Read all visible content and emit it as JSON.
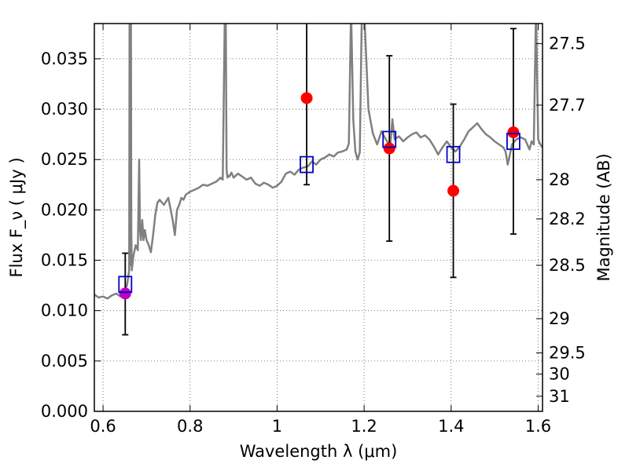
{
  "chart_data": {
    "type": "scatter",
    "title": "",
    "xlabel": "Wavelength  λ (μm)",
    "ylabel": "Flux  F_ν  ( μJy )",
    "ylabel_right": "Magnitude (AB)",
    "xlim": [
      0.58,
      1.61
    ],
    "ylim": [
      0.0,
      0.0385
    ],
    "grid": true,
    "x_ticks": [
      0.6,
      0.8,
      1.0,
      1.2,
      1.4,
      1.6
    ],
    "x_tick_labels": [
      "0.6",
      "0.8",
      "1",
      "1.2",
      "1.4",
      "1.6"
    ],
    "y_ticks": [
      0.0,
      0.005,
      0.01,
      0.015,
      0.02,
      0.025,
      0.03,
      0.035
    ],
    "y_tick_labels": [
      "0.000",
      "0.005",
      "0.010",
      "0.015",
      "0.020",
      "0.025",
      "0.030",
      "0.035"
    ],
    "right_ticks": [
      {
        "label": "27.5",
        "flux": 0.0365
      },
      {
        "label": "27.7",
        "flux": 0.0304
      },
      {
        "label": "28",
        "flux": 0.023
      },
      {
        "label": "28.2",
        "flux": 0.0191
      },
      {
        "label": "28.5",
        "flux": 0.0145
      },
      {
        "label": "29",
        "flux": 0.0092
      },
      {
        "label": "29.5",
        "flux": 0.0058
      },
      {
        "label": "30",
        "flux": 0.0037
      },
      {
        "label": "31",
        "flux": 0.0015
      }
    ],
    "series": [
      {
        "kind": "line",
        "color": "#808080",
        "x": [
          0.58,
          0.59,
          0.6,
          0.61,
          0.62,
          0.63,
          0.64,
          0.645,
          0.65,
          0.655,
          0.66,
          0.661,
          0.662,
          0.663,
          0.664,
          0.665,
          0.666,
          0.67,
          0.675,
          0.68,
          0.683,
          0.685,
          0.687,
          0.69,
          0.693,
          0.696,
          0.7,
          0.705,
          0.71,
          0.715,
          0.72,
          0.725,
          0.73,
          0.74,
          0.75,
          0.76,
          0.765,
          0.77,
          0.775,
          0.78,
          0.785,
          0.79,
          0.8,
          0.81,
          0.82,
          0.83,
          0.84,
          0.85,
          0.86,
          0.87,
          0.875,
          0.88,
          0.882,
          0.884,
          0.886,
          0.888,
          0.89,
          0.895,
          0.9,
          0.91,
          0.92,
          0.93,
          0.94,
          0.95,
          0.96,
          0.97,
          0.98,
          0.99,
          1.0,
          1.01,
          1.02,
          1.03,
          1.04,
          1.05,
          1.06,
          1.07,
          1.08,
          1.09,
          1.1,
          1.11,
          1.12,
          1.13,
          1.14,
          1.15,
          1.16,
          1.165,
          1.17,
          1.175,
          1.18,
          1.185,
          1.19,
          1.195,
          1.2,
          1.21,
          1.22,
          1.23,
          1.24,
          1.25,
          1.26,
          1.265,
          1.27,
          1.28,
          1.29,
          1.3,
          1.31,
          1.32,
          1.33,
          1.34,
          1.35,
          1.36,
          1.37,
          1.38,
          1.39,
          1.4,
          1.41,
          1.42,
          1.43,
          1.44,
          1.45,
          1.46,
          1.47,
          1.48,
          1.49,
          1.5,
          1.51,
          1.52,
          1.525,
          1.53,
          1.54,
          1.55,
          1.56,
          1.57,
          1.58,
          1.585,
          1.59,
          1.595,
          1.6,
          1.605,
          1.61
        ],
        "y": [
          0.0116,
          0.0113,
          0.0114,
          0.0112,
          0.0115,
          0.0117,
          0.0114,
          0.0118,
          0.012,
          0.0125,
          0.014,
          0.04,
          0.02,
          0.0145,
          0.04,
          0.018,
          0.014,
          0.0155,
          0.0165,
          0.016,
          0.025,
          0.018,
          0.017,
          0.019,
          0.017,
          0.018,
          0.017,
          0.0165,
          0.0158,
          0.0175,
          0.0195,
          0.0207,
          0.021,
          0.0205,
          0.0212,
          0.019,
          0.0175,
          0.02,
          0.0205,
          0.0212,
          0.021,
          0.0215,
          0.0218,
          0.022,
          0.0222,
          0.0225,
          0.0224,
          0.0226,
          0.0228,
          0.0232,
          0.023,
          0.04,
          0.04,
          0.024,
          0.0232,
          0.0234,
          0.0233,
          0.0237,
          0.0232,
          0.0236,
          0.0233,
          0.023,
          0.0232,
          0.0226,
          0.0224,
          0.0227,
          0.0225,
          0.0222,
          0.0224,
          0.0228,
          0.0236,
          0.0238,
          0.0235,
          0.024,
          0.0242,
          0.0243,
          0.0248,
          0.0245,
          0.025,
          0.0252,
          0.0255,
          0.0253,
          0.0257,
          0.0258,
          0.026,
          0.0266,
          0.04,
          0.029,
          0.0258,
          0.025,
          0.0257,
          0.04,
          0.04,
          0.03,
          0.0276,
          0.0265,
          0.0278,
          0.027,
          0.0263,
          0.029,
          0.027,
          0.0273,
          0.0268,
          0.0272,
          0.0275,
          0.0277,
          0.0272,
          0.0274,
          0.027,
          0.0263,
          0.0255,
          0.0262,
          0.0268,
          0.0262,
          0.0258,
          0.0263,
          0.027,
          0.0278,
          0.0282,
          0.0286,
          0.028,
          0.0275,
          0.0272,
          0.0268,
          0.0265,
          0.0262,
          0.0258,
          0.0245,
          0.0265,
          0.027,
          0.0272,
          0.027,
          0.026,
          0.0268,
          0.0265,
          0.04,
          0.027,
          0.0265,
          0.0262
        ]
      },
      {
        "kind": "points",
        "marker": "circle",
        "color": "#ff0000",
        "points": [
          [
            1.068,
            0.0311
          ],
          [
            1.258,
            0.0261
          ],
          [
            1.405,
            0.0219
          ],
          [
            1.543,
            0.0277
          ]
        ]
      },
      {
        "kind": "points",
        "marker": "circle",
        "color": "#bf00bf",
        "points": [
          [
            0.651,
            0.0117
          ]
        ]
      },
      {
        "kind": "points",
        "marker": "square-open",
        "color": "#0000cc",
        "points": [
          [
            0.651,
            0.0126
          ],
          [
            1.068,
            0.0245
          ],
          [
            1.258,
            0.027
          ],
          [
            1.405,
            0.0255
          ],
          [
            1.543,
            0.0268
          ]
        ]
      },
      {
        "kind": "errorbars",
        "color": "#000000",
        "bars": [
          {
            "x": 0.651,
            "low": 0.0076,
            "high": 0.0157
          },
          {
            "x": 1.068,
            "low": 0.0225,
            "high": 0.04
          },
          {
            "x": 1.258,
            "low": 0.0169,
            "high": 0.0353
          },
          {
            "x": 1.405,
            "low": 0.0133,
            "high": 0.0305
          },
          {
            "x": 1.543,
            "low": 0.0176,
            "high": 0.038
          }
        ]
      }
    ]
  }
}
